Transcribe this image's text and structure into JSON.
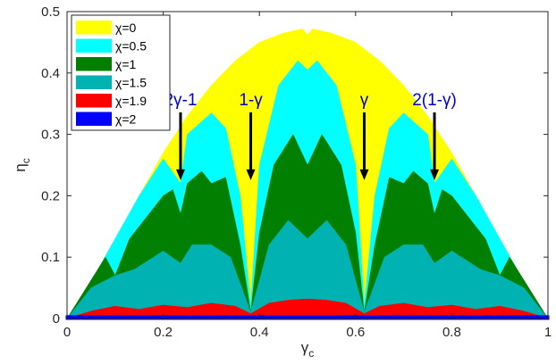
{
  "chart_data": {
    "type": "area",
    "xlabel": "γ",
    "xlabel_sub": "c",
    "ylabel": "η",
    "ylabel_sub": "c",
    "xlim": [
      0,
      1
    ],
    "ylim": [
      0,
      0.5
    ],
    "x_ticks": [
      0,
      0.2,
      0.4,
      0.6,
      0.8,
      1
    ],
    "x_tick_labels": [
      "0",
      "0.2",
      "0.4",
      "0.6",
      "0.8",
      "1"
    ],
    "y_ticks": [
      0,
      0.1,
      0.2,
      0.3,
      0.4,
      0.5
    ],
    "y_tick_labels": [
      "0",
      "0.1",
      "0.2",
      "0.3",
      "0.4",
      "0.5"
    ],
    "grid": false,
    "legend_position": "top-left",
    "legend_prefix": "χ=",
    "series": [
      {
        "name": "0",
        "color": "#ffff00",
        "x": [
          0,
          0.05,
          0.1,
          0.15,
          0.2,
          0.25,
          0.3,
          0.35,
          0.4,
          0.45,
          0.49,
          0.5,
          0.51,
          0.55,
          0.6,
          0.65,
          0.7,
          0.75,
          0.8,
          0.85,
          0.9,
          0.95,
          1
        ],
        "y": [
          0,
          0.06,
          0.13,
          0.2,
          0.27,
          0.33,
          0.38,
          0.42,
          0.45,
          0.465,
          0.472,
          0.462,
          0.472,
          0.465,
          0.45,
          0.42,
          0.38,
          0.33,
          0.27,
          0.2,
          0.13,
          0.06,
          0
        ]
      },
      {
        "name": "0.5",
        "color": "#00ffff",
        "x": [
          0,
          0.05,
          0.1,
          0.15,
          0.2,
          0.236,
          0.25,
          0.3,
          0.33,
          0.36,
          0.382,
          0.4,
          0.44,
          0.48,
          0.5,
          0.52,
          0.56,
          0.6,
          0.618,
          0.64,
          0.67,
          0.7,
          0.75,
          0.764,
          0.8,
          0.85,
          0.9,
          0.95,
          1
        ],
        "y": [
          0,
          0.06,
          0.13,
          0.2,
          0.26,
          0.22,
          0.3,
          0.335,
          0.31,
          0.2,
          0.02,
          0.25,
          0.38,
          0.42,
          0.405,
          0.42,
          0.38,
          0.25,
          0.02,
          0.2,
          0.31,
          0.335,
          0.3,
          0.22,
          0.26,
          0.2,
          0.13,
          0.06,
          0
        ]
      },
      {
        "name": "1",
        "color": "#007f00",
        "x": [
          0,
          0.04,
          0.08,
          0.1,
          0.13,
          0.16,
          0.2,
          0.22,
          0.236,
          0.25,
          0.28,
          0.3,
          0.33,
          0.36,
          0.382,
          0.4,
          0.43,
          0.47,
          0.5,
          0.53,
          0.57,
          0.6,
          0.618,
          0.64,
          0.67,
          0.7,
          0.72,
          0.75,
          0.764,
          0.78,
          0.8,
          0.84,
          0.87,
          0.9,
          0.92,
          0.96,
          1
        ],
        "y": [
          0,
          0.05,
          0.1,
          0.07,
          0.13,
          0.16,
          0.2,
          0.21,
          0.17,
          0.22,
          0.24,
          0.22,
          0.23,
          0.12,
          0.01,
          0.14,
          0.25,
          0.3,
          0.25,
          0.3,
          0.25,
          0.14,
          0.01,
          0.12,
          0.23,
          0.22,
          0.24,
          0.22,
          0.17,
          0.21,
          0.2,
          0.16,
          0.13,
          0.07,
          0.1,
          0.05,
          0
        ]
      },
      {
        "name": "1.5",
        "color": "#00b2b2",
        "x": [
          0,
          0.05,
          0.1,
          0.14,
          0.18,
          0.2,
          0.236,
          0.26,
          0.3,
          0.34,
          0.382,
          0.42,
          0.46,
          0.5,
          0.54,
          0.58,
          0.618,
          0.66,
          0.7,
          0.74,
          0.764,
          0.8,
          0.82,
          0.86,
          0.9,
          0.95,
          1
        ],
        "y": [
          0,
          0.05,
          0.07,
          0.08,
          0.1,
          0.11,
          0.09,
          0.12,
          0.12,
          0.1,
          0.01,
          0.12,
          0.16,
          0.13,
          0.16,
          0.12,
          0.01,
          0.1,
          0.12,
          0.12,
          0.09,
          0.11,
          0.1,
          0.08,
          0.07,
          0.05,
          0
        ]
      },
      {
        "name": "1.9",
        "color": "#ff0000",
        "x": [
          0,
          0.05,
          0.1,
          0.15,
          0.2,
          0.25,
          0.3,
          0.35,
          0.382,
          0.42,
          0.46,
          0.5,
          0.54,
          0.58,
          0.618,
          0.65,
          0.7,
          0.75,
          0.8,
          0.85,
          0.9,
          0.95,
          1
        ],
        "y": [
          0,
          0.012,
          0.02,
          0.015,
          0.022,
          0.018,
          0.025,
          0.02,
          0.008,
          0.025,
          0.03,
          0.032,
          0.03,
          0.025,
          0.008,
          0.02,
          0.025,
          0.018,
          0.022,
          0.015,
          0.02,
          0.012,
          0
        ]
      },
      {
        "name": "2",
        "color": "#0000ff",
        "x": [
          0,
          1
        ],
        "y": [
          0.003,
          0.003
        ]
      }
    ],
    "annotations": [
      {
        "label": "2γ-1",
        "x": 0.236,
        "y_label": 0.33,
        "y_tip": 0.24
      },
      {
        "label": "1-γ",
        "x": 0.382,
        "y_label": 0.33,
        "y_tip": 0.24
      },
      {
        "label": "γ",
        "x": 0.618,
        "y_label": 0.33,
        "y_tip": 0.24
      },
      {
        "label": "2(1-γ)",
        "x": 0.764,
        "y_label": 0.33,
        "y_tip": 0.24
      }
    ],
    "annotation_color": "#0000cc",
    "arrow_color": "#000000"
  }
}
